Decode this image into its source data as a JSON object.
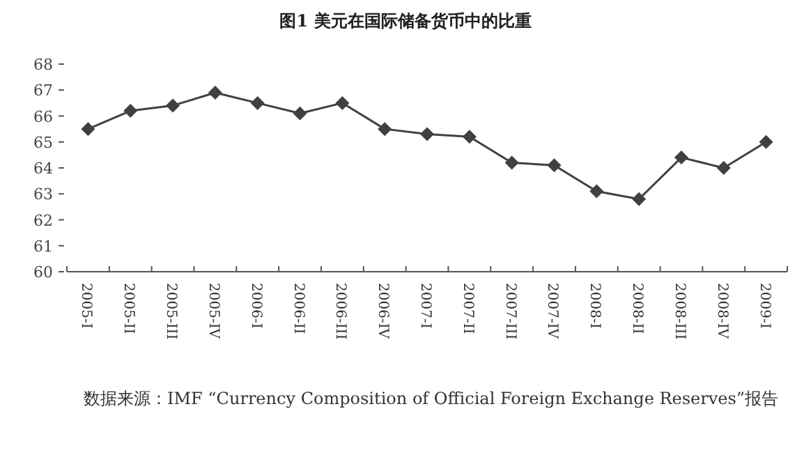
{
  "chart_data": {
    "type": "line",
    "title": "图1 美元在国际储备货币中的比重",
    "categories": [
      "2005-I",
      "2005-II",
      "2005-III",
      "2005-IV",
      "2006-I",
      "2006-II",
      "2006-III",
      "2006-IV",
      "2007-I",
      "2007-II",
      "2007-III",
      "2007-IV",
      "2008-I",
      "2008-II",
      "2008-III",
      "2008-IV",
      "2009-I"
    ],
    "series": [
      {
        "color": "#404040",
        "values": [
          65.5,
          66.2,
          66.4,
          66.9,
          66.5,
          66.1,
          66.5,
          65.5,
          65.3,
          65.2,
          64.2,
          64.1,
          63.1,
          62.8,
          64.4,
          64.0,
          65.0
        ]
      }
    ],
    "ylim": [
      60,
      68
    ],
    "yticks": [
      60,
      61,
      62,
      63,
      64,
      65,
      66,
      67,
      68
    ],
    "marker": "diamond",
    "line_style": "solid",
    "grid": false,
    "annotations": [
      "数据来源：IMF “Currency Composition of Official Foreign Exchange Reserves”报告"
    ]
  }
}
